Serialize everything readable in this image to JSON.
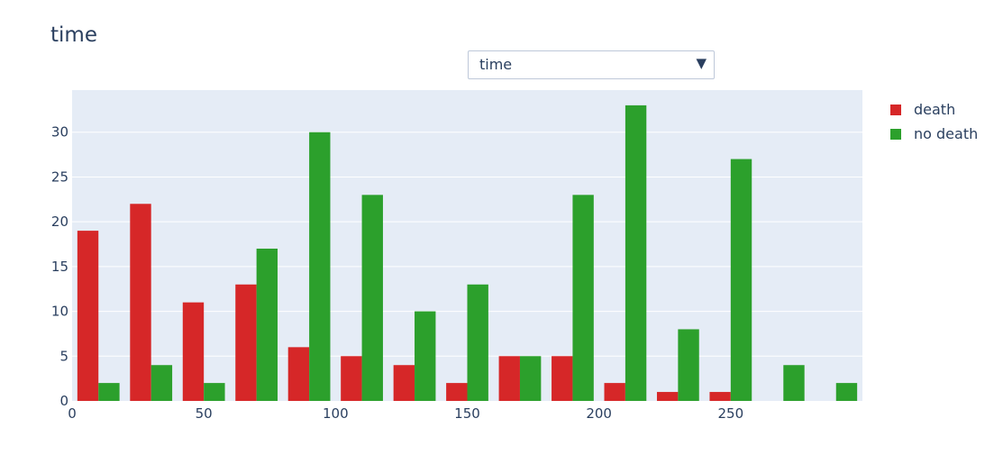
{
  "title": "time",
  "dropdown": {
    "selected": "time"
  },
  "colors": {
    "death": "#d62728",
    "no_death": "#2ca02c",
    "plot_bg": "#e5ecf6",
    "grid": "#ffffff",
    "text": "#2a3f5f"
  },
  "chart_data": {
    "type": "bar",
    "barmode": "group",
    "title": "time",
    "xlabel": "",
    "ylabel": "",
    "xlim": [
      0,
      300
    ],
    "ylim": [
      0,
      34.7
    ],
    "grid": true,
    "legend_placement": "top-right, outside plot",
    "bin_width": 20,
    "x_ticks": [
      "0",
      "50",
      "100",
      "150",
      "200",
      "250"
    ],
    "x_tick_values": [
      0,
      50,
      100,
      150,
      200,
      250
    ],
    "y_ticks": [
      "0",
      "5",
      "10",
      "15",
      "20",
      "25",
      "30"
    ],
    "y_tick_values": [
      0,
      5,
      10,
      15,
      20,
      25,
      30
    ],
    "bin_starts": [
      0,
      20,
      40,
      60,
      80,
      100,
      120,
      140,
      160,
      180,
      200,
      220,
      240,
      260,
      280
    ],
    "series": [
      {
        "name": "death",
        "values": [
          19,
          22,
          11,
          13,
          6,
          5,
          4,
          2,
          5,
          5,
          2,
          1,
          1,
          0,
          0
        ]
      },
      {
        "name": "no death",
        "values": [
          2,
          4,
          2,
          17,
          30,
          23,
          10,
          13,
          5,
          23,
          33,
          8,
          27,
          4,
          2
        ]
      }
    ]
  }
}
